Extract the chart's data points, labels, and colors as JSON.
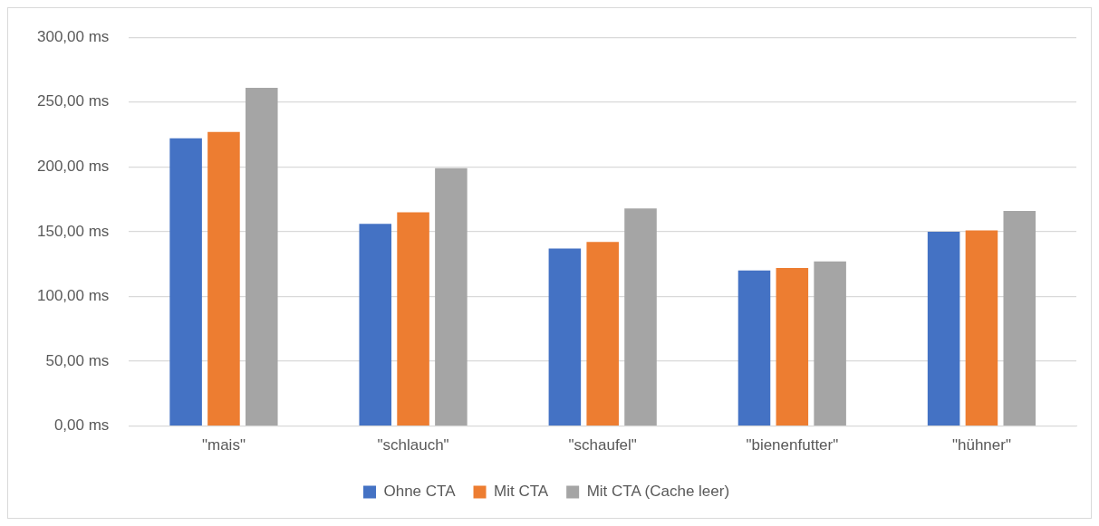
{
  "chart_data": {
    "type": "bar",
    "categories": [
      "\"mais\"",
      "\"schlauch\"",
      "\"schaufel\"",
      "\"bienenfutter\"",
      "\"hühner\""
    ],
    "series": [
      {
        "name": "Ohne CTA",
        "color": "#4472c4",
        "values": [
          222,
          156,
          137,
          120,
          150
        ]
      },
      {
        "name": "Mit CTA",
        "color": "#ed7d31",
        "values": [
          227,
          165,
          142,
          122,
          151
        ]
      },
      {
        "name": "Mit CTA (Cache leer)",
        "color": "#a5a5a5",
        "values": [
          261,
          199,
          168,
          127,
          166
        ]
      }
    ],
    "ylim": [
      0,
      300
    ],
    "yticks": [
      {
        "value": 0,
        "label": "0,00 ms"
      },
      {
        "value": 50,
        "label": "50,00 ms"
      },
      {
        "value": 100,
        "label": "100,00 ms"
      },
      {
        "value": 150,
        "label": "150,00 ms"
      },
      {
        "value": 200,
        "label": "200,00 ms"
      },
      {
        "value": 250,
        "label": "250,00 ms"
      },
      {
        "value": 300,
        "label": "300,00 ms"
      }
    ],
    "grid": "y",
    "legend": "bottom"
  }
}
